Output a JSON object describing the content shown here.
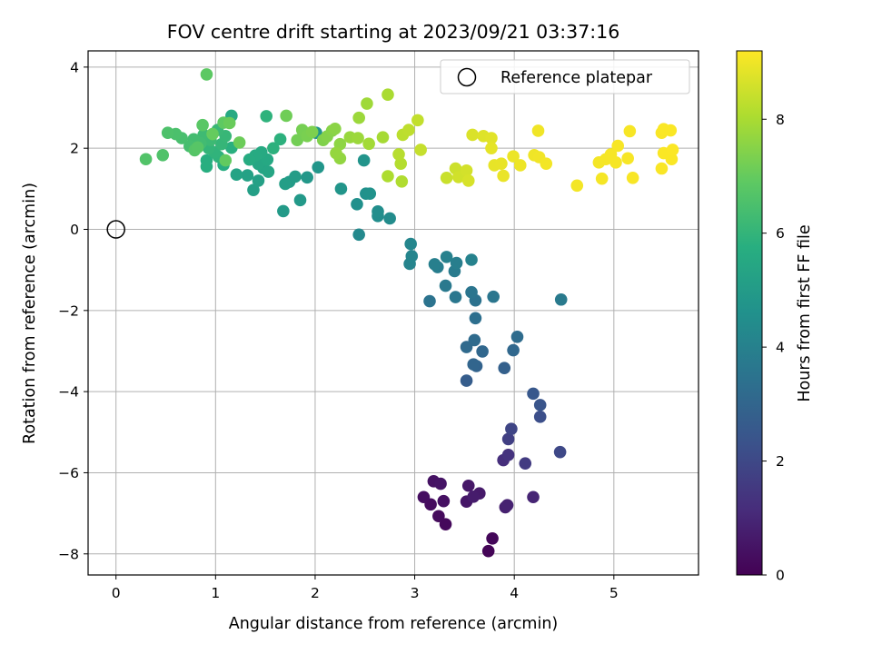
{
  "chart_data": {
    "type": "scatter",
    "title": "FOV centre drift starting at 2023/09/21 03:37:16",
    "xlabel": "Angular distance from reference (arcmin)",
    "ylabel": "Rotation from reference (arcmin)",
    "xlim": [
      -0.28,
      5.85
    ],
    "ylim": [
      -8.52,
      4.4
    ],
    "xticks": [
      0,
      1,
      2,
      3,
      4,
      5
    ],
    "yticks": [
      -8,
      -6,
      -4,
      -2,
      0,
      2,
      4
    ],
    "grid": true,
    "legend": {
      "position": "top-right",
      "entries": [
        "Reference platepar"
      ]
    },
    "reference_point": {
      "x": 0,
      "y": 0
    },
    "colorbar": {
      "label": "Hours from first FF file",
      "range": [
        0,
        9.2
      ],
      "ticks": [
        0,
        2,
        4,
        6,
        8
      ],
      "colormap": "viridis"
    },
    "points": [
      {
        "x": 3.74,
        "y": -7.93,
        "c": 0.1
      },
      {
        "x": 3.78,
        "y": -7.62,
        "c": 0.15
      },
      {
        "x": 3.31,
        "y": -7.27,
        "c": 0.2
      },
      {
        "x": 3.24,
        "y": -7.07,
        "c": 0.25
      },
      {
        "x": 3.16,
        "y": -6.78,
        "c": 0.3
      },
      {
        "x": 3.09,
        "y": -6.6,
        "c": 0.35
      },
      {
        "x": 3.29,
        "y": -6.7,
        "c": 0.4
      },
      {
        "x": 3.19,
        "y": -6.21,
        "c": 0.45
      },
      {
        "x": 3.26,
        "y": -6.27,
        "c": 0.5
      },
      {
        "x": 3.52,
        "y": -6.71,
        "c": 0.55
      },
      {
        "x": 3.54,
        "y": -6.32,
        "c": 0.6
      },
      {
        "x": 3.65,
        "y": -6.51,
        "c": 0.65
      },
      {
        "x": 3.59,
        "y": -6.59,
        "c": 0.7
      },
      {
        "x": 3.91,
        "y": -6.85,
        "c": 0.8
      },
      {
        "x": 3.93,
        "y": -6.8,
        "c": 0.85
      },
      {
        "x": 4.19,
        "y": -6.6,
        "c": 0.95
      },
      {
        "x": 3.89,
        "y": -5.69,
        "c": 1.2
      },
      {
        "x": 3.94,
        "y": -5.56,
        "c": 1.35
      },
      {
        "x": 4.11,
        "y": -5.77,
        "c": 1.6
      },
      {
        "x": 3.94,
        "y": -5.17,
        "c": 1.7
      },
      {
        "x": 3.97,
        "y": -4.92,
        "c": 1.9
      },
      {
        "x": 4.46,
        "y": -5.49,
        "c": 2.0
      },
      {
        "x": 4.26,
        "y": -4.62,
        "c": 2.2
      },
      {
        "x": 4.26,
        "y": -4.33,
        "c": 2.4
      },
      {
        "x": 4.19,
        "y": -4.05,
        "c": 2.5
      },
      {
        "x": 3.52,
        "y": -3.73,
        "c": 2.7
      },
      {
        "x": 3.9,
        "y": -3.42,
        "c": 2.8
      },
      {
        "x": 3.62,
        "y": -3.37,
        "c": 2.9
      },
      {
        "x": 3.59,
        "y": -3.33,
        "c": 3.0
      },
      {
        "x": 3.68,
        "y": -3.01,
        "c": 3.05
      },
      {
        "x": 3.99,
        "y": -2.98,
        "c": 3.1
      },
      {
        "x": 3.52,
        "y": -2.9,
        "c": 3.15
      },
      {
        "x": 3.6,
        "y": -2.73,
        "c": 3.2
      },
      {
        "x": 4.03,
        "y": -2.65,
        "c": 3.25
      },
      {
        "x": 3.61,
        "y": -2.19,
        "c": 3.35
      },
      {
        "x": 3.61,
        "y": -1.75,
        "c": 3.45
      },
      {
        "x": 3.15,
        "y": -1.77,
        "c": 3.5
      },
      {
        "x": 3.57,
        "y": -1.55,
        "c": 3.55
      },
      {
        "x": 3.79,
        "y": -1.66,
        "c": 3.6
      },
      {
        "x": 3.41,
        "y": -1.67,
        "c": 3.65
      },
      {
        "x": 3.31,
        "y": -1.39,
        "c": 3.7
      },
      {
        "x": 4.47,
        "y": -1.73,
        "c": 3.75
      },
      {
        "x": 3.4,
        "y": -1.03,
        "c": 3.8
      },
      {
        "x": 3.23,
        "y": -0.93,
        "c": 3.85
      },
      {
        "x": 3.42,
        "y": -0.83,
        "c": 3.9
      },
      {
        "x": 3.2,
        "y": -0.86,
        "c": 3.95
      },
      {
        "x": 3.32,
        "y": -0.68,
        "c": 4.0
      },
      {
        "x": 3.57,
        "y": -0.75,
        "c": 4.05
      },
      {
        "x": 2.95,
        "y": -0.85,
        "c": 4.1
      },
      {
        "x": 2.97,
        "y": -0.66,
        "c": 4.15
      },
      {
        "x": 2.96,
        "y": -0.36,
        "c": 4.2
      },
      {
        "x": 2.44,
        "y": -0.13,
        "c": 4.3
      },
      {
        "x": 2.75,
        "y": 0.27,
        "c": 4.4
      },
      {
        "x": 2.63,
        "y": 0.33,
        "c": 4.45
      },
      {
        "x": 2.63,
        "y": 0.44,
        "c": 4.5
      },
      {
        "x": 2.42,
        "y": 0.62,
        "c": 4.55
      },
      {
        "x": 2.51,
        "y": 0.88,
        "c": 4.6
      },
      {
        "x": 2.55,
        "y": 0.88,
        "c": 4.65
      },
      {
        "x": 2.49,
        "y": 1.7,
        "c": 4.7
      },
      {
        "x": 2.26,
        "y": 1.0,
        "c": 4.75
      },
      {
        "x": 2.03,
        "y": 1.53,
        "c": 4.8
      },
      {
        "x": 1.92,
        "y": 1.28,
        "c": 4.85
      },
      {
        "x": 2.01,
        "y": 2.38,
        "c": 4.75
      },
      {
        "x": 1.85,
        "y": 0.72,
        "c": 4.9
      },
      {
        "x": 1.68,
        "y": 0.45,
        "c": 4.95
      },
      {
        "x": 1.74,
        "y": 1.17,
        "c": 5.0
      },
      {
        "x": 1.8,
        "y": 1.3,
        "c": 5.05
      },
      {
        "x": 1.7,
        "y": 1.12,
        "c": 5.1
      },
      {
        "x": 1.38,
        "y": 0.97,
        "c": 5.15
      },
      {
        "x": 1.43,
        "y": 1.2,
        "c": 5.2
      },
      {
        "x": 1.32,
        "y": 1.33,
        "c": 5.25
      },
      {
        "x": 1.21,
        "y": 1.35,
        "c": 5.3
      },
      {
        "x": 1.48,
        "y": 1.51,
        "c": 5.35
      },
      {
        "x": 1.53,
        "y": 1.42,
        "c": 5.4
      },
      {
        "x": 1.43,
        "y": 1.61,
        "c": 5.45
      },
      {
        "x": 1.52,
        "y": 1.72,
        "c": 5.5
      },
      {
        "x": 1.46,
        "y": 1.9,
        "c": 5.55
      },
      {
        "x": 1.4,
        "y": 1.82,
        "c": 5.6
      },
      {
        "x": 1.34,
        "y": 1.72,
        "c": 5.65
      },
      {
        "x": 1.08,
        "y": 1.59,
        "c": 5.7
      },
      {
        "x": 0.91,
        "y": 1.55,
        "c": 5.75
      },
      {
        "x": 0.91,
        "y": 1.7,
        "c": 5.75
      },
      {
        "x": 1.16,
        "y": 2.01,
        "c": 5.8
      },
      {
        "x": 1.16,
        "y": 2.8,
        "c": 5.6
      },
      {
        "x": 1.58,
        "y": 2.0,
        "c": 5.85
      },
      {
        "x": 1.65,
        "y": 2.22,
        "c": 5.85
      },
      {
        "x": 1.51,
        "y": 2.79,
        "c": 5.9
      },
      {
        "x": 1.03,
        "y": 1.79,
        "c": 5.9
      },
      {
        "x": 0.99,
        "y": 1.9,
        "c": 5.95
      },
      {
        "x": 0.93,
        "y": 2.0,
        "c": 6.0
      },
      {
        "x": 1.06,
        "y": 2.1,
        "c": 6.05
      },
      {
        "x": 1.1,
        "y": 2.3,
        "c": 6.1
      },
      {
        "x": 1.02,
        "y": 2.45,
        "c": 6.15
      },
      {
        "x": 0.95,
        "y": 2.2,
        "c": 6.2
      },
      {
        "x": 0.88,
        "y": 2.33,
        "c": 6.25
      },
      {
        "x": 0.85,
        "y": 2.12,
        "c": 6.3
      },
      {
        "x": 0.78,
        "y": 2.22,
        "c": 6.35
      },
      {
        "x": 0.74,
        "y": 2.05,
        "c": 6.4
      },
      {
        "x": 0.66,
        "y": 2.25,
        "c": 6.45
      },
      {
        "x": 0.6,
        "y": 2.35,
        "c": 6.5
      },
      {
        "x": 0.52,
        "y": 2.38,
        "c": 6.55
      },
      {
        "x": 0.47,
        "y": 1.83,
        "c": 6.6
      },
      {
        "x": 0.3,
        "y": 1.73,
        "c": 6.65
      },
      {
        "x": 0.79,
        "y": 1.95,
        "c": 6.7
      },
      {
        "x": 0.82,
        "y": 2.02,
        "c": 6.75
      },
      {
        "x": 0.87,
        "y": 2.57,
        "c": 6.8
      },
      {
        "x": 0.91,
        "y": 3.82,
        "c": 6.85
      },
      {
        "x": 1.08,
        "y": 2.63,
        "c": 6.9
      },
      {
        "x": 1.1,
        "y": 1.7,
        "c": 6.95
      },
      {
        "x": 0.97,
        "y": 2.35,
        "c": 7.0
      },
      {
        "x": 1.14,
        "y": 2.62,
        "c": 7.05
      },
      {
        "x": 1.24,
        "y": 2.14,
        "c": 7.1
      },
      {
        "x": 1.71,
        "y": 2.8,
        "c": 7.15
      },
      {
        "x": 1.82,
        "y": 2.2,
        "c": 7.2
      },
      {
        "x": 1.87,
        "y": 2.45,
        "c": 7.25
      },
      {
        "x": 1.92,
        "y": 2.3,
        "c": 7.3
      },
      {
        "x": 1.97,
        "y": 2.4,
        "c": 7.35
      },
      {
        "x": 2.08,
        "y": 2.2,
        "c": 7.4
      },
      {
        "x": 2.12,
        "y": 2.29,
        "c": 7.45
      },
      {
        "x": 2.17,
        "y": 2.43,
        "c": 7.5
      },
      {
        "x": 2.2,
        "y": 2.48,
        "c": 7.55
      },
      {
        "x": 2.25,
        "y": 2.1,
        "c": 7.6
      },
      {
        "x": 2.25,
        "y": 1.75,
        "c": 7.65
      },
      {
        "x": 2.21,
        "y": 1.88,
        "c": 7.7
      },
      {
        "x": 2.35,
        "y": 2.27,
        "c": 7.75
      },
      {
        "x": 2.43,
        "y": 2.25,
        "c": 7.8
      },
      {
        "x": 2.44,
        "y": 2.75,
        "c": 7.8
      },
      {
        "x": 2.52,
        "y": 3.1,
        "c": 7.85
      },
      {
        "x": 2.54,
        "y": 2.11,
        "c": 7.9
      },
      {
        "x": 2.68,
        "y": 2.27,
        "c": 7.95
      },
      {
        "x": 2.73,
        "y": 3.32,
        "c": 8.0
      },
      {
        "x": 2.73,
        "y": 1.31,
        "c": 8.05
      },
      {
        "x": 2.87,
        "y": 1.18,
        "c": 8.1
      },
      {
        "x": 2.86,
        "y": 1.62,
        "c": 8.15
      },
      {
        "x": 2.84,
        "y": 1.85,
        "c": 8.2
      },
      {
        "x": 2.88,
        "y": 2.33,
        "c": 8.25
      },
      {
        "x": 2.94,
        "y": 2.45,
        "c": 8.3
      },
      {
        "x": 3.03,
        "y": 2.69,
        "c": 8.35
      },
      {
        "x": 3.06,
        "y": 1.96,
        "c": 8.4
      },
      {
        "x": 3.32,
        "y": 1.27,
        "c": 8.45
      },
      {
        "x": 3.41,
        "y": 1.5,
        "c": 8.5
      },
      {
        "x": 3.44,
        "y": 1.29,
        "c": 8.55
      },
      {
        "x": 3.52,
        "y": 1.45,
        "c": 8.6
      },
      {
        "x": 3.54,
        "y": 1.2,
        "c": 8.65
      },
      {
        "x": 3.58,
        "y": 2.33,
        "c": 8.7
      },
      {
        "x": 3.69,
        "y": 2.3,
        "c": 8.75
      },
      {
        "x": 3.77,
        "y": 2.25,
        "c": 8.8
      },
      {
        "x": 3.77,
        "y": 2.0,
        "c": 8.85
      },
      {
        "x": 3.8,
        "y": 1.58,
        "c": 8.88
      },
      {
        "x": 3.87,
        "y": 1.62,
        "c": 8.9
      },
      {
        "x": 3.89,
        "y": 1.32,
        "c": 8.92
      },
      {
        "x": 3.99,
        "y": 1.8,
        "c": 8.95
      },
      {
        "x": 4.06,
        "y": 1.58,
        "c": 8.97
      },
      {
        "x": 4.2,
        "y": 1.83,
        "c": 9.0
      },
      {
        "x": 4.24,
        "y": 2.43,
        "c": 9.02
      },
      {
        "x": 4.25,
        "y": 1.78,
        "c": 9.03
      },
      {
        "x": 4.32,
        "y": 1.62,
        "c": 9.05
      },
      {
        "x": 4.63,
        "y": 1.08,
        "c": 9.06
      },
      {
        "x": 4.85,
        "y": 1.65,
        "c": 9.07
      },
      {
        "x": 4.88,
        "y": 1.25,
        "c": 9.08
      },
      {
        "x": 4.92,
        "y": 1.73,
        "c": 9.09
      },
      {
        "x": 4.97,
        "y": 1.85,
        "c": 9.1
      },
      {
        "x": 5.02,
        "y": 1.65,
        "c": 9.1
      },
      {
        "x": 5.04,
        "y": 2.06,
        "c": 9.11
      },
      {
        "x": 5.14,
        "y": 1.75,
        "c": 9.12
      },
      {
        "x": 5.16,
        "y": 2.42,
        "c": 9.12
      },
      {
        "x": 5.19,
        "y": 1.27,
        "c": 9.13
      },
      {
        "x": 5.48,
        "y": 1.5,
        "c": 9.14
      },
      {
        "x": 5.48,
        "y": 2.38,
        "c": 9.14
      },
      {
        "x": 5.5,
        "y": 2.47,
        "c": 9.15
      },
      {
        "x": 5.5,
        "y": 1.88,
        "c": 9.15
      },
      {
        "x": 5.57,
        "y": 2.44,
        "c": 9.16
      },
      {
        "x": 5.58,
        "y": 1.73,
        "c": 9.16
      },
      {
        "x": 5.59,
        "y": 1.96,
        "c": 9.17
      }
    ]
  }
}
